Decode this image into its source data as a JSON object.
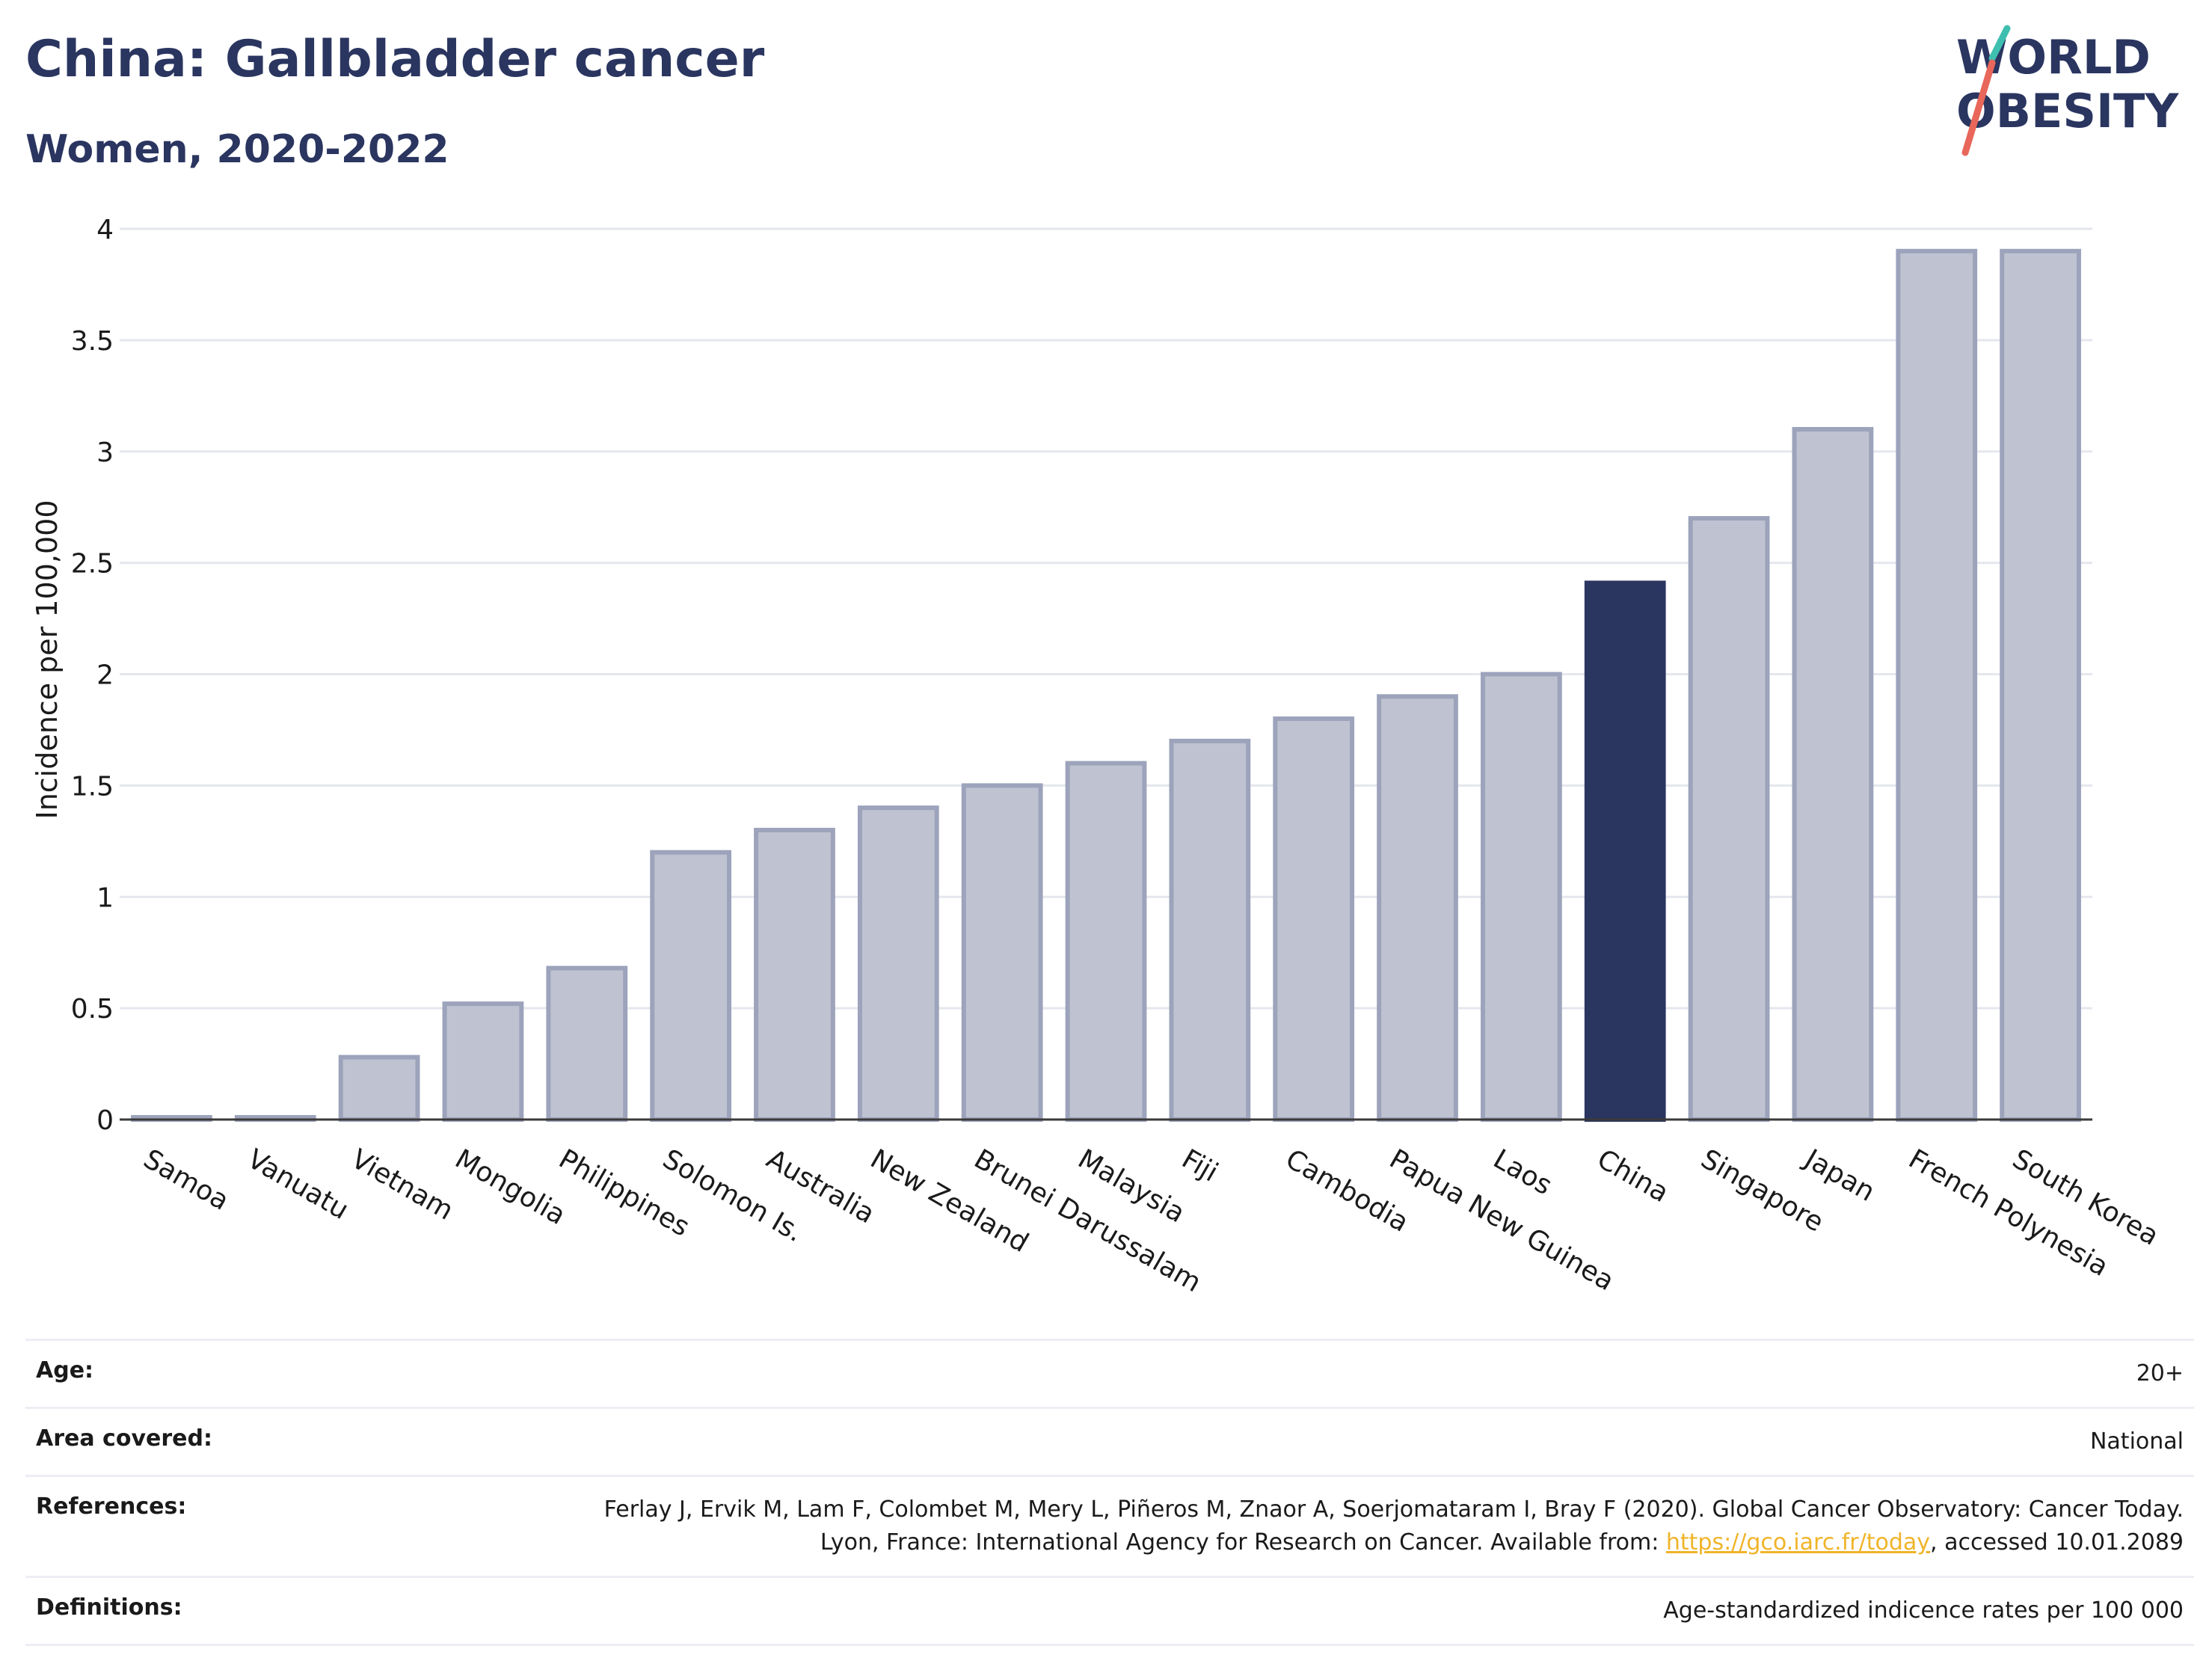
{
  "header": {
    "title": "China: Gallbladder cancer",
    "subtitle": "Women, 2020-2022",
    "logo_line1": "WORLD",
    "logo_line2": "OBESITY"
  },
  "chart_data": {
    "type": "bar",
    "categories": [
      "Samoa",
      "Vanuatu",
      "Vietnam",
      "Mongolia",
      "Philippines",
      "Solomon Is.",
      "Australia",
      "New Zealand",
      "Brunei Darussalam",
      "Malaysia",
      "Fiji",
      "Cambodia",
      "Papua New Guinea",
      "Laos",
      "China",
      "Singapore",
      "Japan",
      "French Polynesia",
      "South Korea"
    ],
    "values": [
      0.01,
      0.01,
      0.28,
      0.52,
      0.68,
      1.2,
      1.3,
      1.4,
      1.5,
      1.6,
      1.7,
      1.8,
      1.9,
      2.0,
      2.41,
      2.7,
      3.1,
      3.9,
      3.9
    ],
    "highlight": "China",
    "ylabel": "Incidence per 100,000",
    "ylim": [
      0,
      4
    ],
    "yticks": [
      "0",
      "0.5",
      "1",
      "1.5",
      "2",
      "2.5",
      "3",
      "3.5",
      "4"
    ],
    "grid": true,
    "colors": {
      "bar": "#bfc3d1",
      "bar_stroke": "#9ca3bb",
      "highlight": "#2a3560",
      "grid": "#e5e7ee",
      "axis": "#3a3a3a"
    }
  },
  "info": {
    "age_label": "Age:",
    "age_value": "20+",
    "area_label": "Area covered:",
    "area_value": "National",
    "references_label": "References:",
    "references_text_1": "Ferlay J, Ervik M, Lam F, Colombet M, Mery L, Piñeros M, Znaor A, Soerjomataram I, Bray F (2020). Global Cancer Observatory: Cancer Today. Lyon, France: International Agency for Research on Cancer. Available from: ",
    "references_link": "https://gco.iarc.fr/today",
    "references_text_2": ", accessed 10.01.2089",
    "definitions_label": "Definitions:",
    "definitions_value": "Age-standardized indicence rates per 100 000"
  },
  "colors": {
    "brand_navy": "#2a3560",
    "logo_teal": "#3fbfb0",
    "logo_coral": "#e8675a",
    "link": "#f0b429"
  }
}
